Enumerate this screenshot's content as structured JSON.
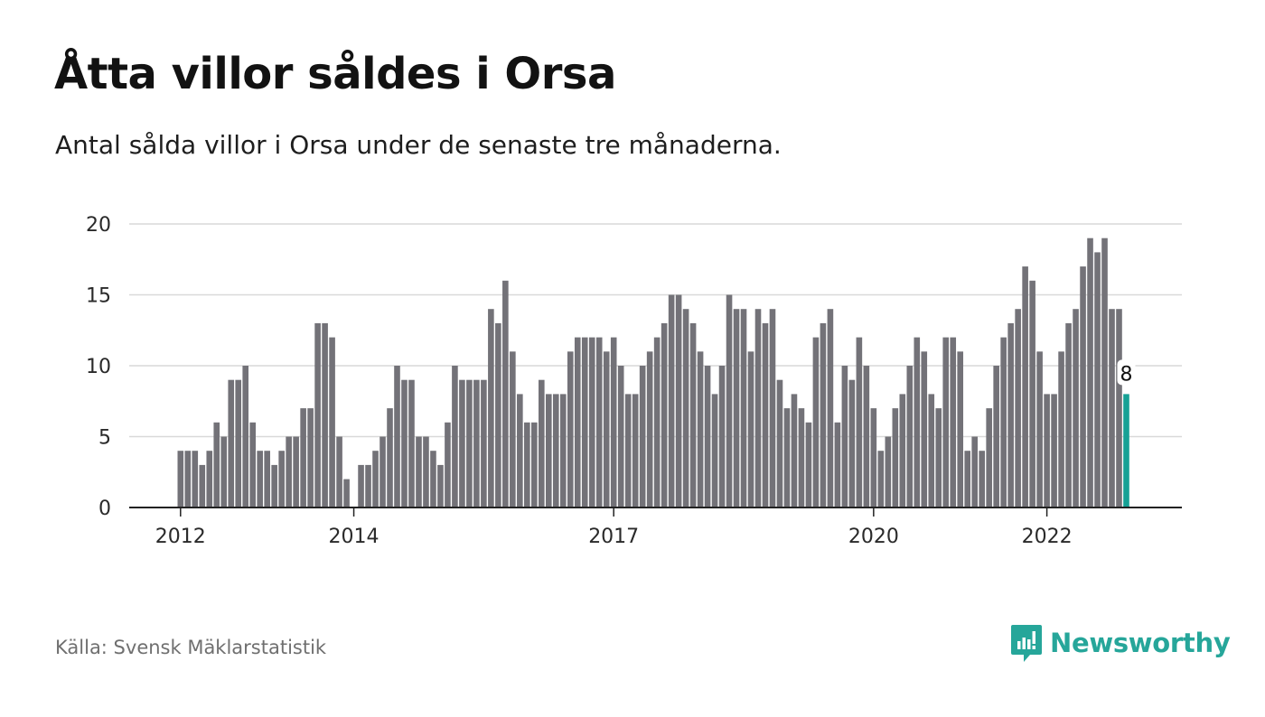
{
  "header": {
    "title": "Åtta villor såldes i Orsa",
    "subtitle": "Antal sålda villor i Orsa under de senaste tre månaderna."
  },
  "footer": {
    "source": "Källa: Svensk Mäklarstatistik",
    "brand": "Newsworthy"
  },
  "icons": {
    "logo": "newsworthy-bar-chart-icon"
  },
  "colors": {
    "bar": "#737278",
    "highlight": "#16a195",
    "brand": "#26a69a",
    "grid": "#d9d9d9",
    "axis": "#222222"
  },
  "chart_data": {
    "type": "bar",
    "title": "Åtta villor såldes i Orsa",
    "subtitle": "Antal sålda villor i Orsa under de senaste tre månaderna.",
    "xlabel": "",
    "ylabel": "",
    "ylim": [
      0,
      20
    ],
    "yticks": [
      0,
      5,
      10,
      15,
      20
    ],
    "xtick_labels": [
      "2012",
      "2014",
      "2017",
      "2020",
      "2022"
    ],
    "grid": true,
    "legend": "none",
    "highlight_label": "8",
    "series": [
      {
        "values": [
          4,
          4,
          4,
          3,
          4,
          6,
          5,
          9,
          9,
          10,
          6,
          4,
          4,
          3,
          4,
          5,
          5,
          7,
          7,
          13,
          13,
          12,
          5,
          2,
          0,
          3,
          3,
          4,
          5,
          7,
          10,
          9,
          9,
          5,
          5,
          4,
          3,
          6,
          10,
          9,
          9,
          9,
          9,
          14,
          13,
          16,
          11,
          8,
          6,
          6,
          9,
          8,
          8,
          8,
          11,
          12,
          12,
          12,
          12,
          11,
          12,
          10,
          8,
          8,
          10,
          11,
          12,
          13,
          15,
          15,
          14,
          13,
          11,
          10,
          8,
          10,
          15,
          14,
          14,
          11,
          14,
          13,
          14,
          9,
          7,
          8,
          7,
          6,
          12,
          13,
          14,
          6,
          10,
          9,
          12,
          10,
          7,
          4,
          5,
          7,
          8,
          10,
          12,
          11,
          8,
          7,
          12,
          12,
          11,
          4,
          5,
          4,
          7,
          10,
          12,
          13,
          14,
          17,
          16,
          11,
          8,
          8,
          11,
          13,
          14,
          17,
          19,
          18,
          19,
          14,
          14,
          8
        ]
      }
    ]
  }
}
